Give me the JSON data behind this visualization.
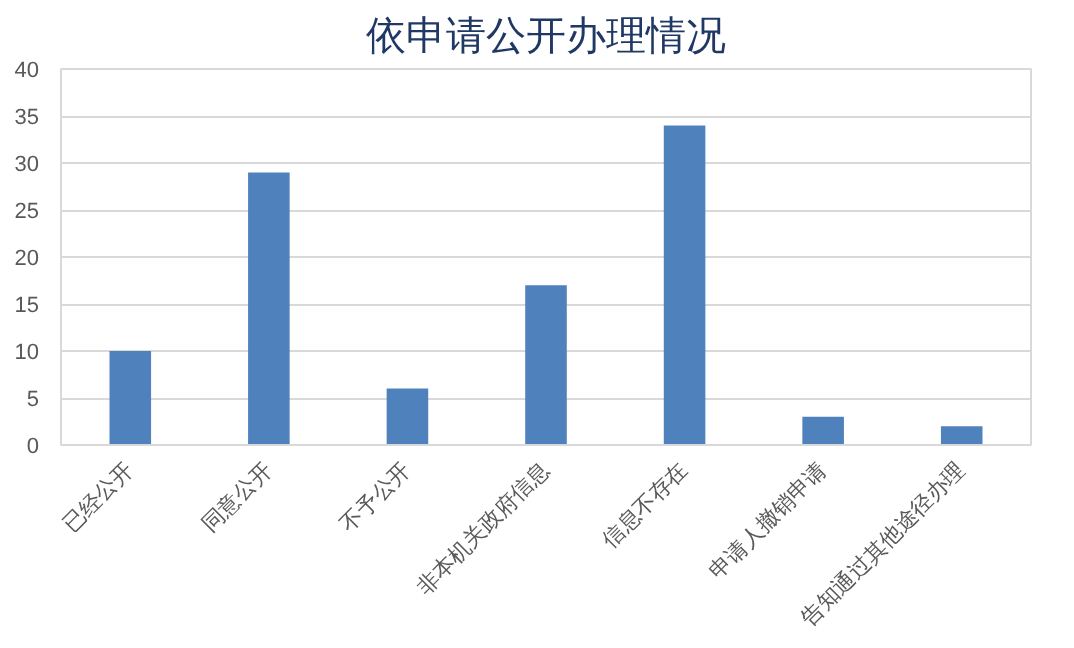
{
  "chart_data": {
    "type": "bar",
    "title": "依申请公开办理情况",
    "categories": [
      "已经公开",
      "同意公开",
      "不予公开",
      "非本机关政府信息",
      "信息不存在",
      "申请人撤销申请",
      "告知通过其他途径办理"
    ],
    "values": [
      10,
      29,
      6,
      17,
      34,
      3,
      2
    ],
    "color": "#4f81bd",
    "ylim": [
      0,
      40
    ],
    "yticks": [
      0,
      5,
      10,
      15,
      20,
      25,
      30,
      35,
      40
    ],
    "grid": "y"
  }
}
